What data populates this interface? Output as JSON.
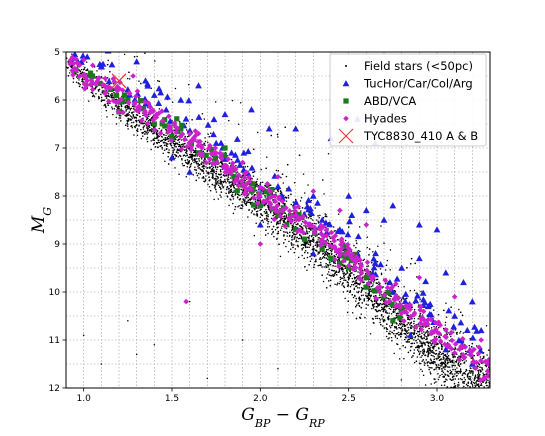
{
  "chart_data": {
    "type": "scatter",
    "xlabel": "G_BP − G_RP",
    "ylabel": "M_G",
    "xlim": [
      0.9,
      3.3
    ],
    "ylim": [
      12,
      5
    ],
    "y_inverted": true,
    "grid": true,
    "grid_style": "dotted",
    "legend_position": "top-right",
    "x_ticks": [
      "1.0",
      "1.5",
      "2.0",
      "2.5",
      "3.0"
    ],
    "y_ticks": [
      "5",
      "6",
      "7",
      "8",
      "9",
      "10",
      "11",
      "12"
    ],
    "series": [
      {
        "name": "Field stars (<50pc)",
        "marker": "dot",
        "color": "#000000",
        "sequence": [
          [
            0.9,
            5.2
          ],
          [
            1.2,
            6.1
          ],
          [
            1.5,
            6.9
          ],
          [
            1.8,
            7.6
          ],
          [
            2.0,
            8.1
          ],
          [
            2.2,
            8.6
          ],
          [
            2.4,
            9.2
          ],
          [
            2.6,
            9.9
          ],
          [
            2.8,
            10.6
          ],
          [
            3.0,
            11.3
          ],
          [
            3.2,
            11.8
          ],
          [
            3.3,
            12.0
          ]
        ],
        "sequence_scatter_mag": 0.45,
        "points": [
          [
            1.0,
            10.9
          ],
          [
            1.3,
            11.3
          ],
          [
            1.1,
            11.5
          ],
          [
            1.4,
            11.1
          ],
          [
            1.6,
            10.2
          ],
          [
            2.1,
            11.6
          ],
          [
            1.7,
            11.8
          ],
          [
            1.25,
            10.6
          ],
          [
            1.9,
            11.0
          ]
        ]
      },
      {
        "name": "TucHor/Car/Col/Arg",
        "marker": "triangle",
        "color": "#1f1fe0",
        "points": [
          [
            0.95,
            5.05
          ],
          [
            1.02,
            5.1
          ],
          [
            1.1,
            5.3
          ],
          [
            1.3,
            5.2
          ],
          [
            1.35,
            5.6
          ],
          [
            1.4,
            5.9
          ],
          [
            1.55,
            6.0
          ],
          [
            1.65,
            5.7
          ],
          [
            1.8,
            6.3
          ],
          [
            1.95,
            6.2
          ],
          [
            2.05,
            6.6
          ],
          [
            1.75,
            6.9
          ],
          [
            2.2,
            6.6
          ],
          [
            2.4,
            6.8
          ],
          [
            2.55,
            6.4
          ],
          [
            2.65,
            6.9
          ],
          [
            2.1,
            7.8
          ],
          [
            2.3,
            8.0
          ],
          [
            2.5,
            8.0
          ],
          [
            2.6,
            8.3
          ],
          [
            2.7,
            8.5
          ],
          [
            2.75,
            8.2
          ],
          [
            2.9,
            8.6
          ],
          [
            3.0,
            8.7
          ],
          [
            2.35,
            8.5
          ],
          [
            2.45,
            8.7
          ],
          [
            2.55,
            9.2
          ],
          [
            2.65,
            9.4
          ],
          [
            2.8,
            9.5
          ],
          [
            2.9,
            9.3
          ],
          [
            3.05,
            9.6
          ],
          [
            3.15,
            9.8
          ],
          [
            3.2,
            10.2
          ],
          [
            3.25,
            10.8
          ],
          [
            2.75,
            10.0
          ],
          [
            2.95,
            10.3
          ],
          [
            3.1,
            10.5
          ],
          [
            1.5,
            7.2
          ],
          [
            1.6,
            7.5
          ],
          [
            2.0,
            8.6
          ],
          [
            2.3,
            9.2
          ],
          [
            2.85,
            10.9
          ],
          [
            3.05,
            11.2
          ],
          [
            3.2,
            11.5
          ]
        ]
      },
      {
        "name": "ABD/VCA",
        "marker": "square",
        "color": "#1a7a1a",
        "points": [
          [
            1.05,
            5.5
          ],
          [
            1.25,
            6.0
          ],
          [
            1.4,
            6.5
          ],
          [
            1.5,
            6.8
          ],
          [
            1.65,
            7.1
          ],
          [
            1.75,
            7.3
          ],
          [
            1.85,
            7.6
          ],
          [
            1.95,
            7.9
          ],
          [
            2.0,
            8.2
          ],
          [
            2.1,
            8.4
          ],
          [
            2.15,
            8.6
          ],
          [
            2.25,
            8.9
          ],
          [
            2.35,
            9.1
          ],
          [
            2.4,
            9.3
          ],
          [
            2.5,
            9.5
          ],
          [
            2.6,
            9.7
          ],
          [
            2.7,
            10.1
          ],
          [
            2.8,
            10.4
          ],
          [
            2.6,
            9.9
          ],
          [
            1.8,
            7.0
          ],
          [
            2.05,
            8.0
          ],
          [
            2.2,
            8.7
          ],
          [
            1.55,
            6.6
          ],
          [
            2.45,
            9.4
          ],
          [
            2.75,
            10.6
          ]
        ]
      },
      {
        "name": "Hyades",
        "marker": "diamond",
        "color": "#cc22cc",
        "band": [
          [
            0.9,
            5.15
          ],
          [
            1.2,
            5.9
          ],
          [
            1.5,
            6.6
          ],
          [
            1.8,
            7.35
          ],
          [
            2.0,
            7.95
          ],
          [
            2.2,
            8.45
          ],
          [
            2.4,
            8.95
          ],
          [
            2.6,
            9.6
          ],
          [
            2.8,
            10.3
          ],
          [
            3.0,
            10.85
          ],
          [
            3.2,
            11.4
          ],
          [
            3.3,
            11.7
          ]
        ],
        "points": [
          [
            1.58,
            10.2
          ],
          [
            1.28,
            5.5
          ],
          [
            1.65,
            6.7
          ],
          [
            1.9,
            7.3
          ],
          [
            2.1,
            7.6
          ],
          [
            2.3,
            7.9
          ],
          [
            2.45,
            8.3
          ],
          [
            2.6,
            8.6
          ],
          [
            2.9,
            9.7
          ],
          [
            3.1,
            10.1
          ],
          [
            3.25,
            11.0
          ],
          [
            2.0,
            9.0
          ]
        ]
      },
      {
        "name": "TYC8830_410 A & B",
        "marker": "x",
        "color": "#ee3333",
        "points": [
          [
            1.2,
            5.6
          ]
        ]
      }
    ]
  }
}
